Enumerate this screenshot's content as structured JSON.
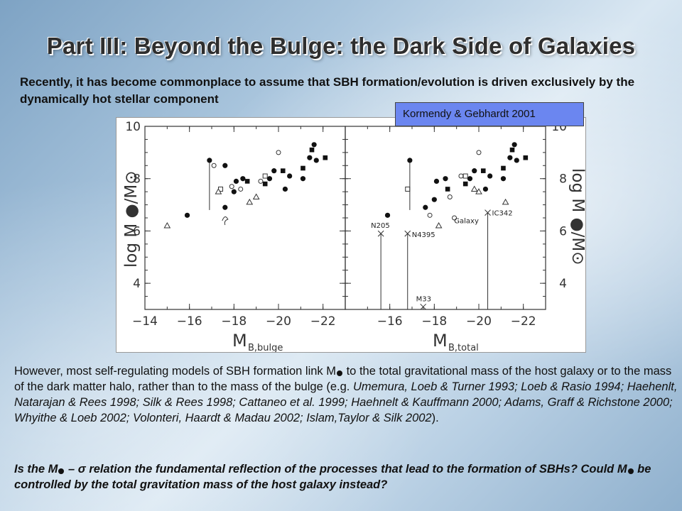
{
  "slide": {
    "title": "Part III: Beyond the Bulge: the Dark Side of Galaxies",
    "intro": "Recently, it has become commonplace to assume that SBH formation/evolution is driven exclusively by the dynamically hot stellar component",
    "citation": "Kormendy & Gebhardt 2001",
    "body_pre": "However, most self-regulating models of SBH formation link M",
    "body_mid": " to the total gravitational mass of the host galaxy or to the mass of the dark matter halo, rather than to the mass of the bulge (e.g. ",
    "body_refs": "Umemura, Loeb & Turner 1993; Loeb & Rasio 1994; Haehenlt, Natarajan & Rees 1998; Silk & Rees 1998; Cattaneo et al. 1999; Haehnelt & Kauffmann 2000; Adams, Graff & Richstone 2000; Whyithe & Loeb 2002; Volonteri, Haardt & Madau 2002; Islam,Taylor & Silk 2002",
    "body_post": ").",
    "question_1": "Is the M",
    "question_sigma": " – σ ",
    "question_2": "relation the fundamental reflection of the processes that lead to the formation of SBHs?  Could  M",
    "question_3": " be controlled by the total gravitation mass of the host galaxy instead?"
  },
  "chart_data": [
    {
      "type": "scatter",
      "xlabel": "M",
      "xlabel_sub": "B,bulge",
      "ylabel": "log M",
      "ylabel_suffix": "/M⊙",
      "xlim": [
        -14,
        -23
      ],
      "ylim": [
        3,
        10
      ],
      "xticks": [
        -14,
        -16,
        -18,
        -20,
        -22
      ],
      "xtick_labels": [
        "−14",
        "−16",
        "−18",
        "−20",
        "−22"
      ],
      "yticks": [
        4,
        6,
        8,
        10
      ],
      "ytick_labels": [
        "4",
        "6",
        "8",
        "10"
      ],
      "series": [
        {
          "marker": "filled-circle",
          "points": [
            [
              -15.9,
              6.6
            ],
            [
              -17.6,
              6.9
            ],
            [
              -18.0,
              7.5
            ],
            [
              -18.4,
              8.0
            ],
            [
              -19.6,
              8.0
            ],
            [
              -19.8,
              8.3
            ],
            [
              -20.3,
              7.6
            ],
            [
              -20.5,
              8.1
            ],
            [
              -21.1,
              8.0
            ],
            [
              -21.4,
              8.8
            ],
            [
              -21.6,
              9.3
            ],
            [
              -21.7,
              8.7
            ],
            [
              -17.6,
              8.5
            ],
            [
              -18.1,
              7.9
            ]
          ]
        },
        {
          "marker": "filled-square",
          "points": [
            [
              -18.6,
              7.9
            ],
            [
              -20.2,
              8.3
            ],
            [
              -21.1,
              8.4
            ],
            [
              -21.5,
              9.1
            ],
            [
              -22.1,
              8.8
            ],
            [
              -19.4,
              7.8
            ]
          ]
        },
        {
          "marker": "filled-circle-errorbar",
          "points": [
            [
              -16.9,
              8.7,
              6.8,
              8.8
            ]
          ]
        },
        {
          "marker": "open-circle",
          "points": [
            [
              -17.1,
              8.5
            ],
            [
              -17.9,
              7.7
            ],
            [
              -18.3,
              7.6
            ],
            [
              -20.0,
              9.0
            ],
            [
              -19.2,
              7.9
            ]
          ]
        },
        {
          "marker": "open-square",
          "points": [
            [
              -17.4,
              7.6
            ],
            [
              -19.4,
              8.1
            ]
          ]
        },
        {
          "marker": "open-triangle",
          "points": [
            [
              -15.0,
              6.2
            ],
            [
              -17.3,
              7.5
            ],
            [
              -18.7,
              7.1
            ],
            [
              -19.0,
              7.3
            ]
          ]
        },
        {
          "marker": "star",
          "points": [
            [
              -17.6,
              6.5
            ]
          ]
        }
      ]
    },
    {
      "type": "scatter",
      "xlabel": "M",
      "xlabel_sub": "B,total",
      "ylabel": "log M",
      "ylabel_suffix": "/M⊙",
      "xlim": [
        -14,
        -23
      ],
      "ylim": [
        3,
        10
      ],
      "xticks": [
        -16,
        -18,
        -20,
        -22
      ],
      "xtick_labels": [
        "−16",
        "−18",
        "−20",
        "−22"
      ],
      "yticks": [
        4,
        6,
        8,
        10
      ],
      "ytick_labels": [
        "4",
        "6",
        "8",
        "10"
      ],
      "annotations": [
        "N205",
        "N4395",
        "IC342",
        "M33",
        "Galaxy"
      ],
      "series": [
        {
          "marker": "filled-circle",
          "points": [
            [
              -15.9,
              6.6
            ],
            [
              -17.6,
              6.9
            ],
            [
              -18.0,
              7.2
            ],
            [
              -18.5,
              8.0
            ],
            [
              -19.6,
              8.0
            ],
            [
              -19.8,
              8.3
            ],
            [
              -20.3,
              7.6
            ],
            [
              -20.5,
              8.1
            ],
            [
              -21.1,
              8.0
            ],
            [
              -21.4,
              8.8
            ],
            [
              -21.6,
              9.3
            ],
            [
              -21.7,
              8.7
            ],
            [
              -18.1,
              7.9
            ]
          ]
        },
        {
          "marker": "filled-square",
          "points": [
            [
              -18.6,
              7.6
            ],
            [
              -20.2,
              8.3
            ],
            [
              -21.1,
              8.4
            ],
            [
              -21.5,
              9.1
            ],
            [
              -22.1,
              8.8
            ],
            [
              -19.4,
              7.8
            ]
          ]
        },
        {
          "marker": "filled-circle-errorbar",
          "points": [
            [
              -16.9,
              8.7,
              6.8,
              8.8
            ]
          ]
        },
        {
          "marker": "open-circle",
          "points": [
            [
              -17.8,
              6.6
            ],
            [
              -19.2,
              8.1
            ],
            [
              -20.0,
              9.0
            ],
            [
              -18.7,
              7.3
            ],
            [
              -18.9,
              6.5
            ]
          ]
        },
        {
          "marker": "open-square",
          "points": [
            [
              -16.8,
              7.6
            ],
            [
              -19.4,
              8.1
            ]
          ]
        },
        {
          "marker": "open-triangle",
          "points": [
            [
              -18.2,
              6.2
            ],
            [
              -20.0,
              7.5
            ],
            [
              -19.8,
              7.6
            ],
            [
              -21.2,
              7.1
            ]
          ]
        },
        {
          "marker": "cross-upper-limit",
          "points": [
            [
              -15.6,
              5.9
            ],
            [
              -16.8,
              5.9
            ],
            [
              -20.4,
              6.7
            ],
            [
              -17.5,
              3.1
            ]
          ]
        }
      ]
    }
  ]
}
